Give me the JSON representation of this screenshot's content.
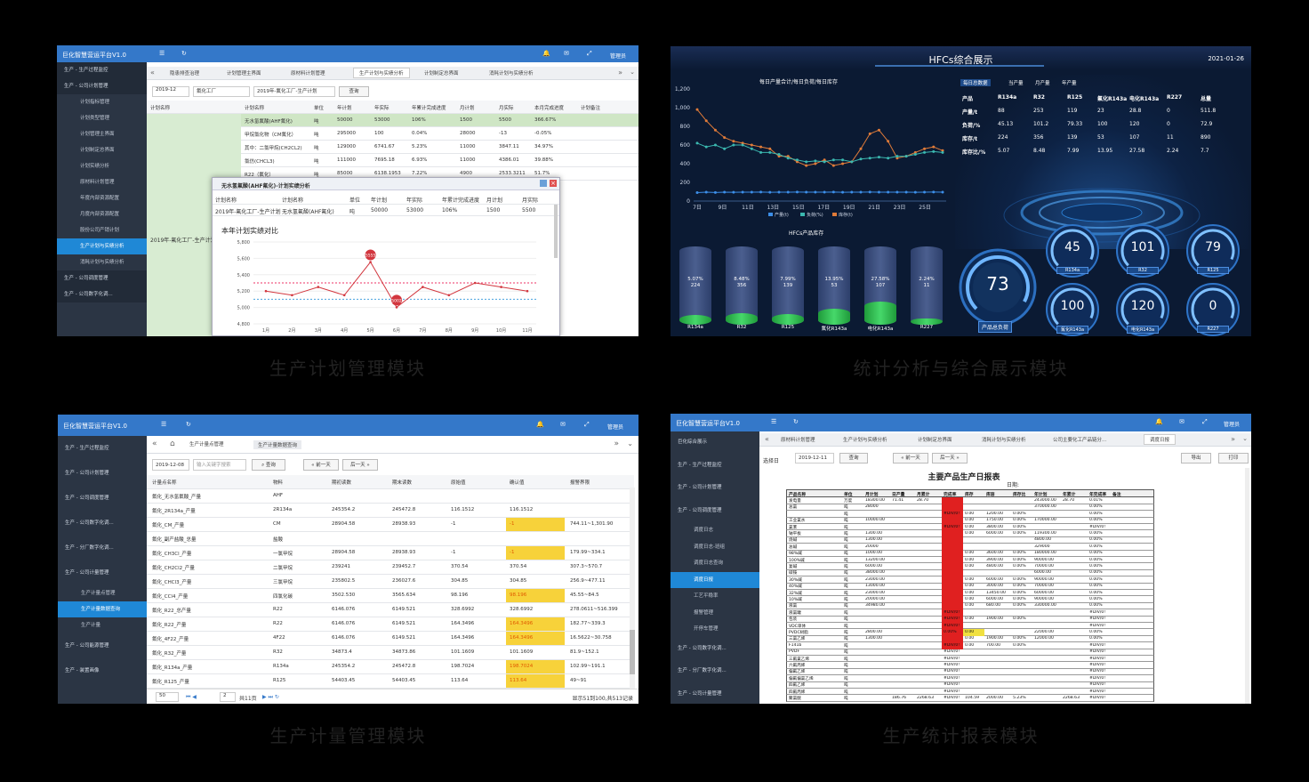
{
  "captions": {
    "a": "生产计划管理模块",
    "b": "统计分析与综合展示模块",
    "c": "生产计量管理模块",
    "d": "生产统计报表模块"
  },
  "panelA": {
    "brand": "巨化智慧营运平台V1.0",
    "user": "管理员",
    "side": [
      {
        "label": "生产 - 生产过程监控",
        "sub": false
      },
      {
        "label": "生产 - 公司计划管理",
        "sub": false
      },
      {
        "label": "计划指标管理",
        "sub": true
      },
      {
        "label": "计划类型管理",
        "sub": true
      },
      {
        "label": "计划管理主界面",
        "sub": true
      },
      {
        "label": "计划制定总界面",
        "sub": true
      },
      {
        "label": "计划实绩分析",
        "sub": true
      },
      {
        "label": "原材料计划管理",
        "sub": true
      },
      {
        "label": "年度内部资源配置",
        "sub": true
      },
      {
        "label": "月度内部资源配置",
        "sub": true
      },
      {
        "label": "股份公司产销计划",
        "sub": true
      },
      {
        "label": "生产计划与实绩分析",
        "sub": true
      },
      {
        "label": "消耗计划与实绩分析",
        "sub": true
      },
      {
        "label": "生产 - 公司调度管理",
        "sub": false
      },
      {
        "label": "生产 - 公司数字化调...",
        "sub": false
      }
    ],
    "tabs": [
      "隐患排查治理",
      "计划管理主界面",
      "原材料计划管理",
      "生产计划与实绩分析",
      "计划制定总界面",
      "消耗计划与实绩分析"
    ],
    "filters": {
      "month": "2019-12",
      "plant": "氟化工厂",
      "plan": "2019年-氟化工厂-生产计划",
      "query": "查询"
    },
    "headers": [
      "计划名称",
      "计划名称",
      "单位",
      "年计划",
      "年实际",
      "年累计完成进度",
      "月计划",
      "月实际",
      "本月完成进度",
      "计划备注"
    ],
    "rows": [
      [
        "无水氢氟酸(AHF氟化)",
        "吨",
        "50000",
        "53000",
        "106%",
        "1500",
        "5500",
        "366.67%"
      ],
      [
        "甲烷氯化物（CM氟化）",
        "吨",
        "295000",
        "100",
        "0.04%",
        "28000",
        "-13",
        "-0.05%"
      ],
      [
        "其中：二氯甲烷(CH2CL2)",
        "吨",
        "129000",
        "6741.67",
        "5.23%",
        "11000",
        "3847.11",
        "34.97%"
      ],
      [
        "氯仿(CHCL3)",
        "吨",
        "111000",
        "7695.18",
        "6.93%",
        "11000",
        "4386.01",
        "39.88%"
      ],
      [
        "R22（氟化）",
        "吨",
        "85000",
        "6138.1953",
        "7.22%",
        "4900",
        "2533.3211",
        "51.7%"
      ]
    ],
    "leftLabel": "2019年-氟化工厂-生产计划",
    "modal": {
      "title": "无水氢氟酸(AHF氟化)-计划实绩分析",
      "headers": [
        "计划名称",
        "计划名称",
        "单位",
        "年计划",
        "年实际",
        "年累计完成进度",
        "月计划",
        "月实际"
      ],
      "row": [
        "2019年-氟化工厂-生产计划",
        "无水氢氟酸(AHF氟化)",
        "吨",
        "50000",
        "53000",
        "106%",
        "1500",
        "5500"
      ],
      "chartTitle": "本年计划实绩对比"
    },
    "chart": {
      "months": [
        "1月",
        "2月",
        "3月",
        "4月",
        "5月",
        "6月",
        "7月",
        "8月",
        "9月",
        "10月",
        "11月"
      ],
      "values": [
        5200,
        5150,
        5250,
        5150,
        5555,
        5002,
        5250,
        5150,
        5300,
        5250,
        5200
      ],
      "yticks": [
        "5,800",
        "5,600",
        "5,400",
        "5,200",
        "5,000",
        "4,800"
      ],
      "ylim": [
        4800,
        5800
      ],
      "maxLabel": "5555",
      "minLabel": "5002"
    }
  },
  "panelB": {
    "title": "HFCs综合展示",
    "date": "2021-01-26",
    "lineTitle": "每日产量合计/每日负荷/每日库存",
    "yticks": [
      "1,200",
      "1,000",
      "800",
      "600",
      "400",
      "200",
      "0"
    ],
    "xticks": [
      "7日",
      "9日",
      "11日",
      "13日",
      "15日",
      "17日",
      "19日",
      "21日",
      "23日",
      "25日"
    ],
    "legend": [
      "产量(t)",
      "负荷(%)",
      "库存(t)"
    ],
    "series": {
      "stock": [
        980,
        860,
        760,
        680,
        640,
        620,
        600,
        580,
        560,
        480,
        480,
        420,
        380,
        400,
        440,
        380,
        400,
        420,
        560,
        720,
        760,
        640,
        460,
        480,
        520,
        560,
        580,
        540
      ],
      "load": [
        620,
        580,
        600,
        560,
        600,
        600,
        560,
        520,
        520,
        500,
        460,
        440,
        420,
        430,
        420,
        440,
        440,
        420,
        450,
        460,
        470,
        460,
        480,
        480,
        500,
        520,
        530,
        520
      ],
      "prod": [
        90,
        95,
        92,
        95,
        94,
        95,
        95,
        96,
        94,
        95,
        95,
        96,
        95,
        95,
        95,
        96,
        94,
        95,
        95,
        96,
        95,
        95,
        95,
        95,
        94,
        95,
        96,
        95
      ]
    },
    "tableHeaders": [
      "每日总数据",
      "当产量",
      "月产量",
      "年产量"
    ],
    "table": [
      [
        "产品",
        "R134a",
        "R32",
        "R125",
        "氟化R143a",
        "电化R143a",
        "R227",
        "总量"
      ],
      [
        "产量/t",
        "88",
        "253",
        "119",
        "23",
        "28.8",
        "0",
        "511.8"
      ],
      [
        "负荷/%",
        "45.13",
        "101.2",
        "79.33",
        "100",
        "120",
        "0",
        "72.9"
      ],
      [
        "库存/t",
        "224",
        "356",
        "139",
        "53",
        "107",
        "11",
        "890"
      ],
      [
        "库存比/%",
        "5.07",
        "8.48",
        "7.99",
        "13.95",
        "27.58",
        "2.24",
        "7.7"
      ]
    ],
    "cylTitle": "HFCs产品库存",
    "cyl": [
      {
        "name": "R134a",
        "pct": "5.07%",
        "val": "224",
        "f": 0.12
      },
      {
        "name": "R32",
        "pct": "8.48%",
        "val": "356",
        "f": 0.15
      },
      {
        "name": "R125",
        "pct": "7.99%",
        "val": "139",
        "f": 0.14
      },
      {
        "name": "氟化R143a",
        "pct": "13.95%",
        "val": "53",
        "f": 0.2
      },
      {
        "name": "电化R143a",
        "pct": "27.58%",
        "val": "107",
        "f": 0.3
      },
      {
        "name": "R227",
        "pct": "2.24%",
        "val": "11",
        "f": 0.08
      }
    ],
    "bigGauge": {
      "value": "73",
      "label": "产品总负荷"
    },
    "gauges": [
      {
        "v": "45",
        "n": "R134a"
      },
      {
        "v": "101",
        "n": "R32"
      },
      {
        "v": "79",
        "n": "R125"
      },
      {
        "v": "100",
        "n": "氟化R143a"
      },
      {
        "v": "120",
        "n": "电化R143a"
      },
      {
        "v": "0",
        "n": "R227"
      }
    ]
  },
  "panelC": {
    "brand": "巨化智慧营运平台V1.0",
    "user": "管理员",
    "side": [
      {
        "label": "生产 - 生产过程监控",
        "t": "m"
      },
      {
        "label": "生产 - 公司计划管理",
        "t": "m"
      },
      {
        "label": "生产 - 公司调度管理",
        "t": "m"
      },
      {
        "label": "生产 - 公司数字化调...",
        "t": "m"
      },
      {
        "label": "生产 - 分厂数字化调...",
        "t": "m"
      },
      {
        "label": "生产 - 公司计量管理",
        "t": "m"
      },
      {
        "label": "生产计量点管理",
        "t": "s"
      },
      {
        "label": "生产计量数据查询",
        "t": "a"
      },
      {
        "label": "生产计量",
        "t": "s"
      },
      {
        "label": "生产 - 公司能源管理",
        "t": "m"
      },
      {
        "label": "生产 - 装置画像",
        "t": "m"
      }
    ],
    "tabs": [
      "生产计量点管理",
      "生产计量数据查询"
    ],
    "date": "2019-12-08",
    "placeholder": "输入关键字搜索",
    "query": "查询",
    "prev": "前一天",
    "next": "后一天",
    "headers": [
      "计量点名称",
      "物料",
      "期初读数",
      "期末读数",
      "原始值",
      "确认值",
      "报警界限"
    ],
    "rows": [
      [
        "氟化_无水氢氟酸_产量",
        "AHF",
        "",
        "",
        "",
        "",
        ""
      ],
      [
        "氟化_2R134a_产量",
        "2R134a",
        "245354.2",
        "245472.8",
        "116.1512",
        "116.1512",
        ""
      ],
      [
        "氟化_CM_产量",
        "CM",
        "28904.58",
        "28938.93",
        "-1",
        "-1",
        "744.11~1,301.90"
      ],
      [
        "氟化_副产盐酸_总量",
        "盐酸",
        "",
        "",
        "",
        "",
        ""
      ],
      [
        "氟化_CH3Cl_产量",
        "一氯甲烷",
        "28904.58",
        "28938.93",
        "-1",
        "-1",
        "179.99~334.1"
      ],
      [
        "氟化_CH2Cl2_产量",
        "二氯甲烷",
        "239241",
        "239452.7",
        "370.54",
        "370.54",
        "307.3~570.7"
      ],
      [
        "氟化_CHCl3_产量",
        "三氯甲烷",
        "235802.5",
        "236027.6",
        "304.85",
        "304.85",
        "256.9~477.11"
      ],
      [
        "氟化_CCl4_产量",
        "四氯化碳",
        "3502.530",
        "3565.634",
        "98.196",
        "98.196",
        "45.55~84.5"
      ],
      [
        "氟化_R22_总产量",
        "R22",
        "6146.076",
        "6149.521",
        "328.6992",
        "328.6992",
        "278.0611~516.399"
      ],
      [
        "氟化_R22_产量",
        "R22",
        "6146.076",
        "6149.521",
        "164.3496",
        "164.3496",
        "182.77~339.3"
      ],
      [
        "氟化_4F22_产量",
        "4F22",
        "6146.076",
        "6149.521",
        "164.3496",
        "164.3496",
        "16.5622~30.758"
      ],
      [
        "氟化_R32_产量",
        "R32",
        "34873.4",
        "34873.86",
        "101.1609",
        "101.1609",
        "81.9~152.1"
      ],
      [
        "氟化_R134a_产量",
        "R134a",
        "245354.2",
        "245472.8",
        "198.7024",
        "198.7024",
        "102.99~191.1"
      ],
      [
        "氟化_R125_产量",
        "R125",
        "54403.45",
        "54403.45",
        "113.64",
        "113.64",
        "49~91"
      ]
    ],
    "highlight": [
      2,
      4,
      7,
      9,
      10,
      12,
      13
    ],
    "pager": {
      "size": "50",
      "page": "2",
      "total": "共11页",
      "info": "显示51到100,共513记录"
    }
  },
  "panelD": {
    "brand": "巨化智慧营运平台V1.0",
    "user": "管理员",
    "side": [
      {
        "label": "巨化综合展示",
        "t": "m"
      },
      {
        "label": "生产 - 生产过程监控",
        "t": "m"
      },
      {
        "label": "生产 - 公司计划管理",
        "t": "m"
      },
      {
        "label": "生产 - 公司调度管理",
        "t": "m"
      },
      {
        "label": "调度日志",
        "t": "s"
      },
      {
        "label": "调度日志-班组",
        "t": "s"
      },
      {
        "label": "调度日志查询",
        "t": "s"
      },
      {
        "label": "调度日报",
        "t": "a"
      },
      {
        "label": "工艺平稳率",
        "t": "s"
      },
      {
        "label": "报警管理",
        "t": "s"
      },
      {
        "label": "开停车管理",
        "t": "s"
      },
      {
        "label": "生产 - 公司数字化调...",
        "t": "m"
      },
      {
        "label": "生产 - 分厂数字化调...",
        "t": "m"
      },
      {
        "label": "生产 - 公司计量管理",
        "t": "m"
      }
    ],
    "tabs": [
      "原材料计划管理",
      "生产计划与实绩分析",
      "计划制定总界面",
      "消耗计划与实绩分析",
      "公司主要化工产品链分...",
      "调度日报"
    ],
    "sel": "选择日",
    "date": "2019-12-11",
    "query": "查询",
    "prev": "前一天",
    "next": "后一天",
    "export": "导出",
    "print": "打印",
    "reportTitle": "主要产品生产日报表",
    "reportDate": "日期:",
    "headers": [
      "产品名称",
      "单位",
      "月计划",
      "日产量",
      "月累计",
      "完成率",
      "库存",
      "库容",
      "库存比",
      "年计划",
      "年累计",
      "年完成率",
      "备注"
    ],
    "rows": [
      [
        "发电量",
        "万度",
        "18300.00",
        "71.41",
        "28.70",
        "",
        "",
        "",
        "",
        "243000.00",
        "28.70",
        "0.01%"
      ],
      [
        "总氯",
        "吨",
        "28000",
        "",
        "",
        "",
        "",
        "",
        "",
        "370000.00",
        "",
        "0.00%"
      ],
      [
        "",
        "吨",
        "",
        "",
        "",
        "#DIV/0!",
        "0.00",
        "1200.00",
        "0.00%",
        "",
        "",
        "0.00%"
      ],
      [
        "工业氯水",
        "吨",
        "10000.00",
        "",
        "",
        "",
        "0.00",
        "1750.00",
        "0.00%",
        "170000.00",
        "",
        "0.00%"
      ],
      [
        "氯苯",
        "吨",
        "",
        "",
        "",
        "#DIV/0!",
        "0.00",
        "3800.00",
        "0.00%",
        "",
        "",
        "#DIV/0!"
      ],
      [
        "钠平板",
        "吨",
        "1300.00",
        "",
        "",
        "",
        "0.00",
        "6000.00",
        "0.00%",
        "119300.00",
        "",
        "0.00%"
      ],
      [
        "烧碱",
        "吨",
        "1300.00",
        "",
        "",
        "",
        "",
        "",
        "",
        "4800.00",
        "",
        "0.00%"
      ],
      [
        "总碱",
        "吨",
        "20000",
        "",
        "",
        "",
        "",
        "",
        "",
        "329000",
        "",
        "0.00%"
      ],
      [
        "98%碱",
        "吨",
        "1000.00",
        "",
        "",
        "",
        "0.00",
        "3600.00",
        "0.00%",
        "180000.00",
        "",
        "0.00%"
      ],
      [
        "100%碱",
        "吨",
        "13200.00",
        "",
        "",
        "",
        "0.00",
        "3900.00",
        "0.00%",
        "90000.00",
        "",
        "0.00%"
      ],
      [
        "复碱",
        "吨",
        "6000.00",
        "",
        "",
        "",
        "0.00",
        "4800.00",
        "0.00%",
        "70000.00",
        "",
        "0.00%"
      ],
      [
        "碳铵",
        "吨",
        "38000.00",
        "",
        "",
        "",
        "",
        "",
        "",
        "6000.00",
        "",
        "0.00%"
      ],
      [
        "30%碱",
        "吨",
        "23000.00",
        "",
        "",
        "",
        "0.00",
        "6000.00",
        "0.00%",
        "90000.00",
        "",
        "0.00%"
      ],
      [
        "40%碱",
        "吨",
        "13000.00",
        "",
        "",
        "",
        "0.00",
        "3000.00",
        "0.00%",
        "70000.00",
        "",
        "0.00%"
      ],
      [
        "32%碱",
        "吨",
        "23000.00",
        "",
        "",
        "",
        "0.00",
        "13450.00",
        "0.00%",
        "60000.00",
        "",
        "0.00%"
      ],
      [
        "10%碱",
        "吨",
        "20000.00",
        "",
        "",
        "",
        "0.00",
        "6000.00",
        "0.00%",
        "90000.00",
        "",
        "0.00%"
      ],
      [
        "液氯",
        "吨",
        "34980.00",
        "",
        "",
        "",
        "0.00",
        "680.00",
        "0.00%",
        "330000.00",
        "",
        "0.00%"
      ],
      [
        "液氯罐",
        "吨",
        "",
        "",
        "",
        "#DIV/0!",
        "",
        "",
        "",
        "",
        "",
        "#DIV/0!"
      ],
      [
        "包装",
        "吨",
        "",
        "",
        "",
        "#DIV/0!",
        "0.00",
        "1900.00",
        "0.00%",
        "",
        "",
        "#DIV/0!"
      ],
      [
        "VDC单体",
        "吨",
        "",
        "",
        "",
        "#DIV/0!",
        "",
        "",
        "",
        "",
        "",
        "#DIV/0!"
      ],
      [
        "PVDC树脂",
        "吨",
        "2800.00",
        "",
        "",
        "0.00%",
        "0.00",
        "",
        "",
        "22000.00",
        "",
        "0.00%"
      ],
      [
        "三氯乙烯",
        "吨",
        "1300.00",
        "",
        "",
        "",
        "0.00",
        "1900.00",
        "0.00%",
        "12000.00",
        "",
        "0.00%"
      ],
      [
        "F141b",
        "吨",
        "",
        "",
        "",
        "#DIV/0!",
        "0.00",
        "700.00",
        "0.00%",
        "",
        "",
        "#DIV/0!"
      ],
      [
        "PVDF",
        "吨",
        "",
        "",
        "",
        "#DIV/0!",
        "",
        "",
        "",
        "",
        "",
        "#DIV/0!"
      ],
      [
        "三氟氯乙烯",
        "吨",
        "",
        "",
        "",
        "#DIV/0!",
        "",
        "",
        "",
        "",
        "",
        "#DIV/0!"
      ],
      [
        "六氟丙烯",
        "吨",
        "",
        "",
        "",
        "#DIV/0!",
        "",
        "",
        "",
        "",
        "",
        "#DIV/0!"
      ],
      [
        "偏氟乙烯",
        "吨",
        "",
        "",
        "",
        "#DIV/0!",
        "",
        "",
        "",
        "",
        "",
        "#DIV/0!"
      ],
      [
        "偏氟偏氯乙烯",
        "吨",
        "",
        "",
        "",
        "#DIV/0!",
        "",
        "",
        "",
        "",
        "",
        "#DIV/0!"
      ],
      [
        "四氟乙烯",
        "吨",
        "",
        "",
        "",
        "#DIV/0!",
        "",
        "",
        "",
        "",
        "",
        "#DIV/0!"
      ],
      [
        "四氟丙烯",
        "吨",
        "",
        "",
        "",
        "#DIV/0!",
        "",
        "",
        "",
        "",
        "",
        "#DIV/0!"
      ],
      [
        "聚氯醚",
        "吨",
        "",
        "186.76",
        "2268.63",
        "#DIV/0!",
        "104.59",
        "2000.00",
        "5.23%",
        "",
        "2268.63",
        "#DIV/0!"
      ]
    ]
  }
}
